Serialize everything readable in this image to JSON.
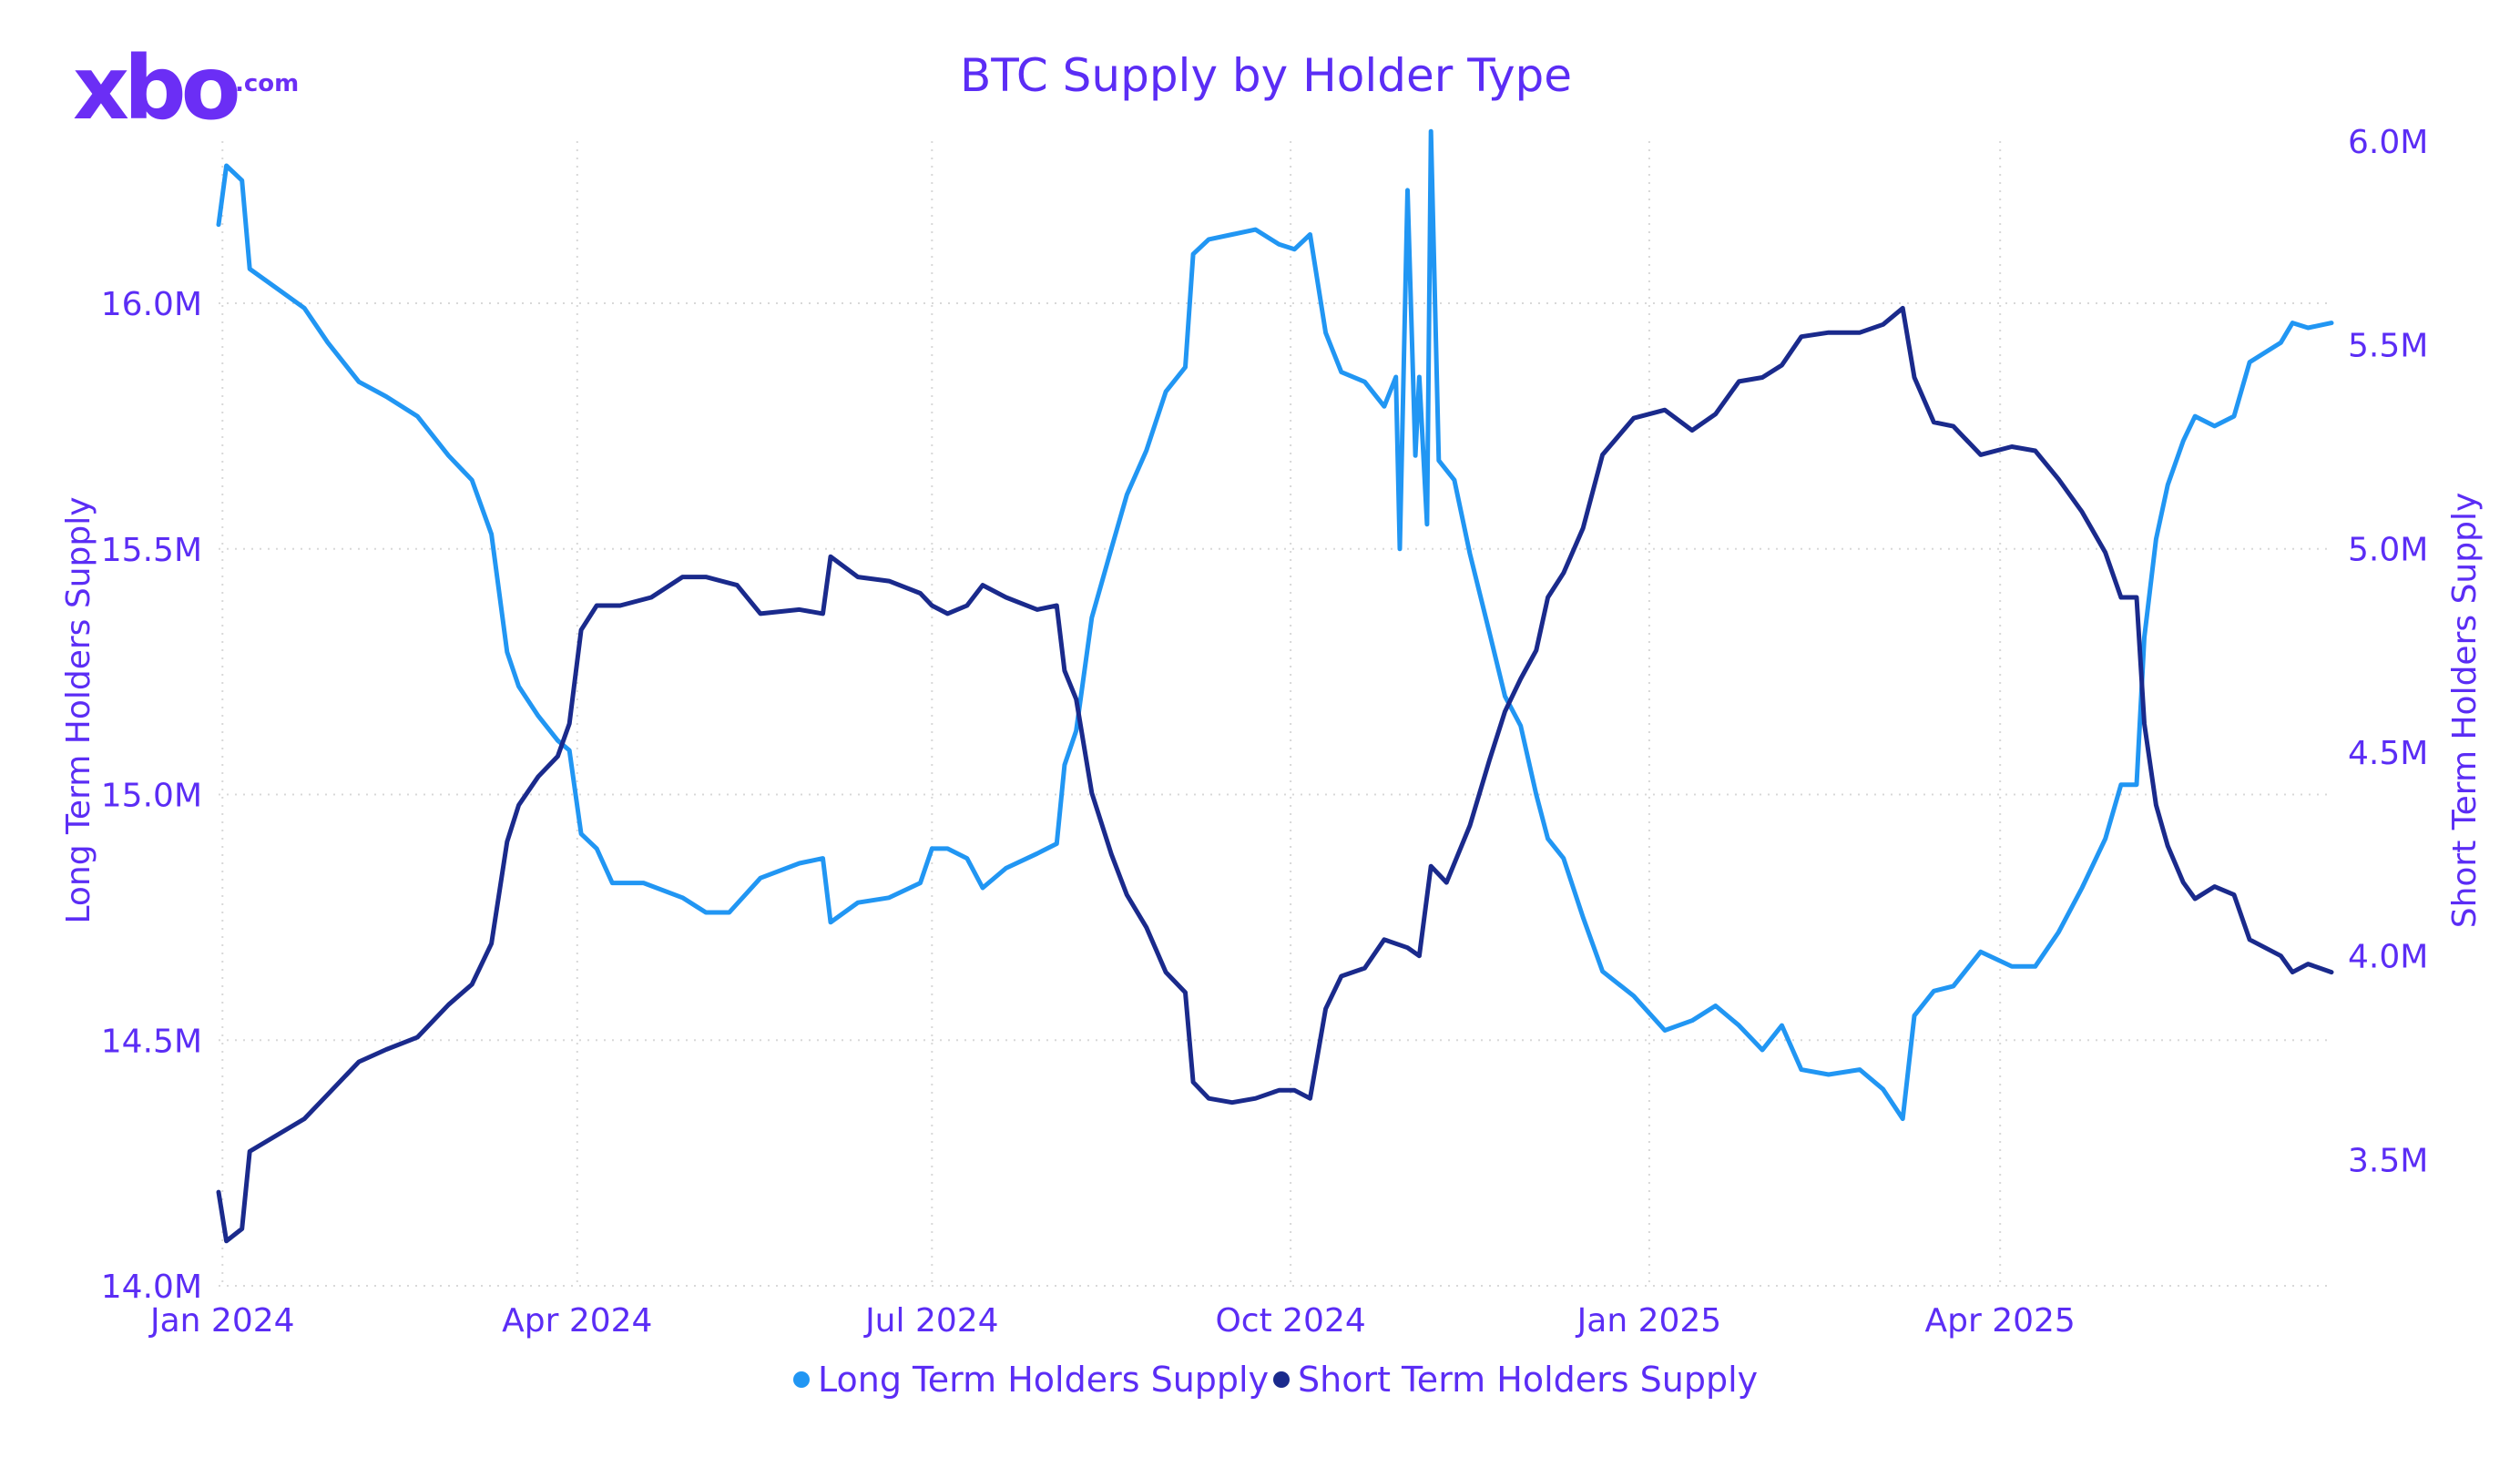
{
  "logo": {
    "text": "xbo",
    "suffix": ".com"
  },
  "chart_data": {
    "type": "line",
    "title": "BTC Supply by Holder Type",
    "xlabel": "",
    "ylabel_left": "Long Term Holders Supply",
    "ylabel_right": "Short Term Holders Supply",
    "x_tick_labels": [
      "Jan 2024",
      "Apr 2024",
      "Jul 2024",
      "Oct 2024",
      "Jan 2025",
      "Apr 2025"
    ],
    "x_tick_dates": [
      "2024-01-01",
      "2024-04-01",
      "2024-07-01",
      "2024-10-01",
      "2025-01-01",
      "2025-04-01"
    ],
    "x_range": [
      "2023-12-31",
      "2025-06-25"
    ],
    "y_left_ticks": [
      "14.0M",
      "14.5M",
      "15.0M",
      "15.5M",
      "16.0M"
    ],
    "y_left_tick_values": [
      14.0,
      14.5,
      15.0,
      15.5,
      16.0
    ],
    "y_left_range": [
      14.0,
      16.33
    ],
    "y_right_ticks": [
      "3.5M",
      "4.0M",
      "4.5M",
      "5.0M",
      "5.5M",
      "6.0M"
    ],
    "y_right_tick_values": [
      3.5,
      4.0,
      4.5,
      5.0,
      5.5,
      6.0
    ],
    "y_right_range": [
      3.19,
      6.0
    ],
    "grid": true,
    "legend_position": "bottom-center",
    "series": [
      {
        "name": "Long Term Holders Supply",
        "axis": "left",
        "color": "#2196f3",
        "points": [
          [
            "2023-12-31",
            16.16
          ],
          [
            "2024-01-02",
            16.28
          ],
          [
            "2024-01-06",
            16.25
          ],
          [
            "2024-01-08",
            16.07
          ],
          [
            "2024-01-15",
            16.03
          ],
          [
            "2024-01-22",
            15.99
          ],
          [
            "2024-01-28",
            15.92
          ],
          [
            "2024-02-05",
            15.84
          ],
          [
            "2024-02-12",
            15.81
          ],
          [
            "2024-02-20",
            15.77
          ],
          [
            "2024-02-28",
            15.69
          ],
          [
            "2024-03-05",
            15.64
          ],
          [
            "2024-03-10",
            15.53
          ],
          [
            "2024-03-14",
            15.29
          ],
          [
            "2024-03-17",
            15.22
          ],
          [
            "2024-03-22",
            15.16
          ],
          [
            "2024-03-27",
            15.11
          ],
          [
            "2024-03-30",
            15.09
          ],
          [
            "2024-04-02",
            14.92
          ],
          [
            "2024-04-06",
            14.89
          ],
          [
            "2024-04-10",
            14.82
          ],
          [
            "2024-04-18",
            14.82
          ],
          [
            "2024-04-28",
            14.79
          ],
          [
            "2024-05-04",
            14.76
          ],
          [
            "2024-05-10",
            14.76
          ],
          [
            "2024-05-18",
            14.83
          ],
          [
            "2024-05-28",
            14.86
          ],
          [
            "2024-06-03",
            14.87
          ],
          [
            "2024-06-05",
            14.74
          ],
          [
            "2024-06-12",
            14.78
          ],
          [
            "2024-06-20",
            14.79
          ],
          [
            "2024-06-28",
            14.82
          ],
          [
            "2024-07-01",
            14.89
          ],
          [
            "2024-07-05",
            14.89
          ],
          [
            "2024-07-10",
            14.87
          ],
          [
            "2024-07-14",
            14.81
          ],
          [
            "2024-07-20",
            14.85
          ],
          [
            "2024-07-28",
            14.88
          ],
          [
            "2024-08-02",
            14.9
          ],
          [
            "2024-08-04",
            15.06
          ],
          [
            "2024-08-07",
            15.13
          ],
          [
            "2024-08-11",
            15.36
          ],
          [
            "2024-08-16",
            15.5
          ],
          [
            "2024-08-20",
            15.61
          ],
          [
            "2024-08-25",
            15.7
          ],
          [
            "2024-08-30",
            15.82
          ],
          [
            "2024-09-04",
            15.87
          ],
          [
            "2024-09-06",
            16.1
          ],
          [
            "2024-09-10",
            16.13
          ],
          [
            "2024-09-16",
            16.14
          ],
          [
            "2024-09-22",
            16.15
          ],
          [
            "2024-09-28",
            16.12
          ],
          [
            "2024-10-02",
            16.11
          ],
          [
            "2024-10-06",
            16.14
          ],
          [
            "2024-10-10",
            15.94
          ],
          [
            "2024-10-14",
            15.86
          ],
          [
            "2024-10-20",
            15.84
          ],
          [
            "2024-10-25",
            15.79
          ],
          [
            "2024-10-28",
            15.85
          ],
          [
            "2024-10-29",
            15.5
          ],
          [
            "2024-10-31",
            16.23
          ],
          [
            "2024-11-02",
            15.69
          ],
          [
            "2024-11-03",
            15.85
          ],
          [
            "2024-11-05",
            15.55
          ],
          [
            "2024-11-06",
            16.35
          ],
          [
            "2024-11-08",
            15.68
          ],
          [
            "2024-11-12",
            15.64
          ],
          [
            "2024-11-16",
            15.49
          ],
          [
            "2024-11-21",
            15.33
          ],
          [
            "2024-11-25",
            15.2
          ],
          [
            "2024-11-29",
            15.14
          ],
          [
            "2024-12-03",
            15.0
          ],
          [
            "2024-12-06",
            14.91
          ],
          [
            "2024-12-10",
            14.87
          ],
          [
            "2024-12-15",
            14.75
          ],
          [
            "2024-12-20",
            14.64
          ],
          [
            "2024-12-28",
            14.59
          ],
          [
            "2025-01-05",
            14.52
          ],
          [
            "2025-01-12",
            14.54
          ],
          [
            "2025-01-18",
            14.57
          ],
          [
            "2025-01-24",
            14.53
          ],
          [
            "2025-01-30",
            14.48
          ],
          [
            "2025-02-04",
            14.53
          ],
          [
            "2025-02-09",
            14.44
          ],
          [
            "2025-02-16",
            14.43
          ],
          [
            "2025-02-24",
            14.44
          ],
          [
            "2025-03-02",
            14.4
          ],
          [
            "2025-03-07",
            14.34
          ],
          [
            "2025-03-10",
            14.55
          ],
          [
            "2025-03-15",
            14.6
          ],
          [
            "2025-03-20",
            14.61
          ],
          [
            "2025-03-27",
            14.68
          ],
          [
            "2025-04-04",
            14.65
          ],
          [
            "2025-04-10",
            14.65
          ],
          [
            "2025-04-16",
            14.72
          ],
          [
            "2025-04-22",
            14.81
          ],
          [
            "2025-04-28",
            14.91
          ],
          [
            "2025-05-02",
            15.02
          ],
          [
            "2025-05-06",
            15.02
          ],
          [
            "2025-05-08",
            15.32
          ],
          [
            "2025-05-11",
            15.52
          ],
          [
            "2025-05-14",
            15.63
          ],
          [
            "2025-05-18",
            15.72
          ],
          [
            "2025-05-21",
            15.77
          ],
          [
            "2025-05-26",
            15.75
          ],
          [
            "2025-05-31",
            15.77
          ],
          [
            "2025-06-04",
            15.88
          ],
          [
            "2025-06-12",
            15.92
          ],
          [
            "2025-06-15",
            15.96
          ],
          [
            "2025-06-19",
            15.95
          ],
          [
            "2025-06-25",
            15.96
          ]
        ]
      },
      {
        "name": "Short Term Holders Supply",
        "axis": "right",
        "color": "#1a2a8c",
        "points": [
          [
            "2023-12-31",
            3.42
          ],
          [
            "2024-01-02",
            3.3
          ],
          [
            "2024-01-06",
            3.33
          ],
          [
            "2024-01-08",
            3.52
          ],
          [
            "2024-01-15",
            3.56
          ],
          [
            "2024-01-22",
            3.6
          ],
          [
            "2024-01-28",
            3.66
          ],
          [
            "2024-02-05",
            3.74
          ],
          [
            "2024-02-12",
            3.77
          ],
          [
            "2024-02-20",
            3.8
          ],
          [
            "2024-02-28",
            3.88
          ],
          [
            "2024-03-05",
            3.93
          ],
          [
            "2024-03-10",
            4.03
          ],
          [
            "2024-03-14",
            4.28
          ],
          [
            "2024-03-17",
            4.37
          ],
          [
            "2024-03-22",
            4.44
          ],
          [
            "2024-03-27",
            4.49
          ],
          [
            "2024-03-30",
            4.57
          ],
          [
            "2024-04-02",
            4.8
          ],
          [
            "2024-04-06",
            4.86
          ],
          [
            "2024-04-12",
            4.86
          ],
          [
            "2024-04-20",
            4.88
          ],
          [
            "2024-04-28",
            4.93
          ],
          [
            "2024-05-04",
            4.93
          ],
          [
            "2024-05-12",
            4.91
          ],
          [
            "2024-05-18",
            4.84
          ],
          [
            "2024-05-28",
            4.85
          ],
          [
            "2024-06-03",
            4.84
          ],
          [
            "2024-06-05",
            4.98
          ],
          [
            "2024-06-12",
            4.93
          ],
          [
            "2024-06-20",
            4.92
          ],
          [
            "2024-06-28",
            4.89
          ],
          [
            "2024-07-01",
            4.86
          ],
          [
            "2024-07-05",
            4.84
          ],
          [
            "2024-07-10",
            4.86
          ],
          [
            "2024-07-14",
            4.91
          ],
          [
            "2024-07-20",
            4.88
          ],
          [
            "2024-07-28",
            4.85
          ],
          [
            "2024-08-02",
            4.86
          ],
          [
            "2024-08-04",
            4.7
          ],
          [
            "2024-08-07",
            4.63
          ],
          [
            "2024-08-11",
            4.4
          ],
          [
            "2024-08-16",
            4.25
          ],
          [
            "2024-08-20",
            4.15
          ],
          [
            "2024-08-25",
            4.07
          ],
          [
            "2024-08-30",
            3.96
          ],
          [
            "2024-09-04",
            3.91
          ],
          [
            "2024-09-06",
            3.69
          ],
          [
            "2024-09-10",
            3.65
          ],
          [
            "2024-09-16",
            3.64
          ],
          [
            "2024-09-22",
            3.65
          ],
          [
            "2024-09-28",
            3.67
          ],
          [
            "2024-10-02",
            3.67
          ],
          [
            "2024-10-06",
            3.65
          ],
          [
            "2024-10-10",
            3.87
          ],
          [
            "2024-10-14",
            3.95
          ],
          [
            "2024-10-20",
            3.97
          ],
          [
            "2024-10-25",
            4.04
          ],
          [
            "2024-10-31",
            4.02
          ],
          [
            "2024-11-03",
            4.0
          ],
          [
            "2024-11-06",
            4.22
          ],
          [
            "2024-11-10",
            4.18
          ],
          [
            "2024-11-16",
            4.32
          ],
          [
            "2024-11-21",
            4.48
          ],
          [
            "2024-11-25",
            4.6
          ],
          [
            "2024-11-29",
            4.68
          ],
          [
            "2024-12-03",
            4.75
          ],
          [
            "2024-12-06",
            4.88
          ],
          [
            "2024-12-10",
            4.94
          ],
          [
            "2024-12-15",
            5.05
          ],
          [
            "2024-12-20",
            5.23
          ],
          [
            "2024-12-28",
            5.32
          ],
          [
            "2025-01-05",
            5.34
          ],
          [
            "2025-01-12",
            5.29
          ],
          [
            "2025-01-18",
            5.33
          ],
          [
            "2025-01-24",
            5.41
          ],
          [
            "2025-01-30",
            5.42
          ],
          [
            "2025-02-04",
            5.45
          ],
          [
            "2025-02-09",
            5.52
          ],
          [
            "2025-02-16",
            5.53
          ],
          [
            "2025-02-24",
            5.53
          ],
          [
            "2025-03-02",
            5.55
          ],
          [
            "2025-03-07",
            5.59
          ],
          [
            "2025-03-10",
            5.42
          ],
          [
            "2025-03-15",
            5.31
          ],
          [
            "2025-03-20",
            5.3
          ],
          [
            "2025-03-27",
            5.23
          ],
          [
            "2025-04-04",
            5.25
          ],
          [
            "2025-04-10",
            5.24
          ],
          [
            "2025-04-16",
            5.17
          ],
          [
            "2025-04-22",
            5.09
          ],
          [
            "2025-04-28",
            4.99
          ],
          [
            "2025-05-02",
            4.88
          ],
          [
            "2025-05-06",
            4.88
          ],
          [
            "2025-05-08",
            4.57
          ],
          [
            "2025-05-11",
            4.37
          ],
          [
            "2025-05-14",
            4.27
          ],
          [
            "2025-05-18",
            4.18
          ],
          [
            "2025-05-21",
            4.14
          ],
          [
            "2025-05-26",
            4.17
          ],
          [
            "2025-05-31",
            4.15
          ],
          [
            "2025-06-04",
            4.04
          ],
          [
            "2025-06-12",
            4.0
          ],
          [
            "2025-06-15",
            3.96
          ],
          [
            "2025-06-19",
            3.98
          ],
          [
            "2025-06-25",
            3.96
          ]
        ]
      }
    ]
  }
}
